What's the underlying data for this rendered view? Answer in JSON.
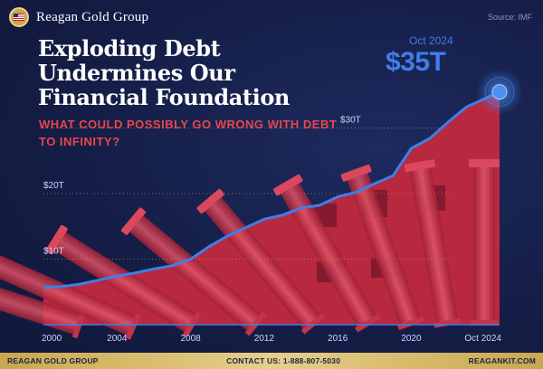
{
  "brand": {
    "name": "Reagan Gold Group"
  },
  "source": "Source: IMF",
  "headline": "Exploding Debt Undermines Our Financial Foundation",
  "subheadline": "WHAT COULD POSSIBLY GO WRONG WITH DEBT TO INFINITY?",
  "callout": {
    "date": "Oct 2024",
    "value": "$35T"
  },
  "footer": {
    "left": "REAGAN GOLD GROUP",
    "center": "CONTACT US: 1-888-807-5030",
    "right": "REAGANKIT.COM"
  },
  "colors": {
    "background": "#141d45",
    "accent_red": "#e8474b",
    "line_blue": "#3f7ee8",
    "area_red": "#b8283e",
    "gold": "#d4b96a"
  },
  "chart_data": {
    "type": "area",
    "title": "",
    "xlabel": "",
    "ylabel": "",
    "x_ticks": [
      "2000",
      "2004",
      "2008",
      "2012",
      "2016",
      "2020",
      "Oct 2024"
    ],
    "y_ticks": [
      "$10T",
      "$20T",
      "$30T"
    ],
    "y_tick_values": [
      10,
      20,
      30
    ],
    "x_range": [
      2000,
      2024.8
    ],
    "y_range": [
      0,
      36
    ],
    "grid": "horizontal dotted at ticks",
    "series": [
      {
        "x": [
          2000,
          2001,
          2002,
          2003,
          2004,
          2005,
          2006,
          2007,
          2008,
          2009,
          2010,
          2011,
          2012,
          2013,
          2014,
          2015,
          2016,
          2017,
          2018,
          2019,
          2020,
          2021,
          2022,
          2023,
          2024.8
        ],
        "values": [
          5.7,
          5.8,
          6.2,
          6.8,
          7.4,
          7.9,
          8.5,
          9.0,
          10.0,
          11.9,
          13.5,
          14.8,
          16.1,
          16.7,
          17.8,
          18.2,
          19.5,
          20.2,
          21.5,
          22.7,
          26.9,
          28.4,
          30.9,
          33.2,
          35.5
        ]
      }
    ],
    "annotation": {
      "label": "$35T",
      "at": "Oct 2024"
    }
  }
}
